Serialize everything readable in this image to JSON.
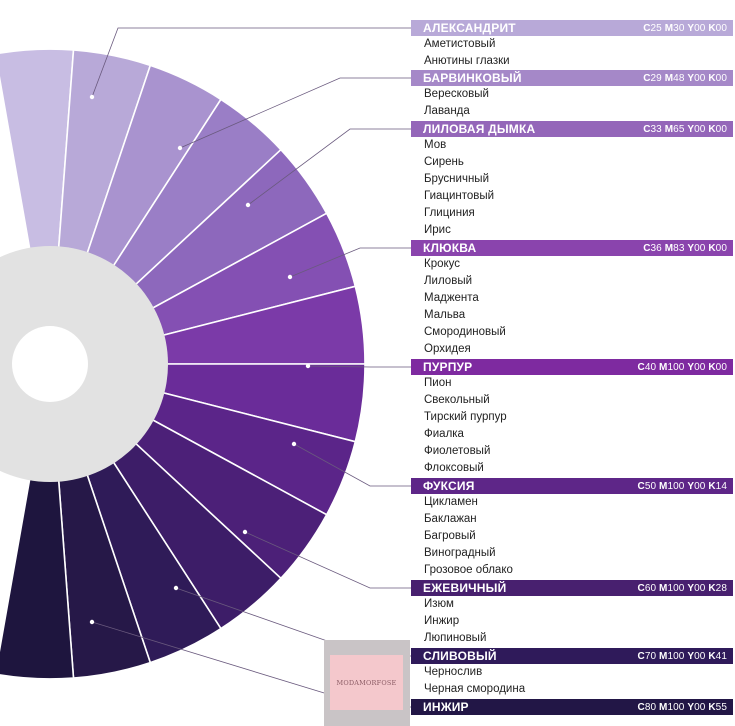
{
  "groups": [
    {
      "name": "АЛЕКСАНДРИТ",
      "cmyk": {
        "c": "25",
        "m": "30",
        "y": "00",
        "k": "00"
      },
      "color": "#b8a9d8",
      "items": [
        "Аметистовый",
        "Анютины глазки"
      ]
    },
    {
      "name": "БАРВИНКОВЫЙ",
      "cmyk": {
        "c": "29",
        "m": "48",
        "y": "00",
        "k": "00"
      },
      "color": "#a588c8",
      "items": [
        "Вересковый",
        "Лаванда"
      ]
    },
    {
      "name": "ЛИЛОВАЯ ДЫМКА",
      "cmyk": {
        "c": "33",
        "m": "65",
        "y": "00",
        "k": "00"
      },
      "color": "#9466b9",
      "items": [
        "Мов",
        "Сирень",
        "Брусничный",
        "Гиацинтовый",
        "Глициния",
        "Ирис"
      ]
    },
    {
      "name": "КЛЮКВА",
      "cmyk": {
        "c": "36",
        "m": "83",
        "y": "00",
        "k": "00"
      },
      "color": "#8a44ad",
      "items": [
        "Крокус",
        "Лиловый",
        "Маджента",
        "Мальва",
        "Смородиновый",
        "Орхидея"
      ]
    },
    {
      "name": "ПУРПУР",
      "cmyk": {
        "c": "40",
        "m": "100",
        "y": "00",
        "k": "00"
      },
      "color": "#7e2aa0",
      "items": [
        "Пион",
        "Свекольный",
        "Тирский пурпур",
        "Фиалка",
        "Фиолетовый",
        "Флоксовый"
      ]
    },
    {
      "name": "ФУКСИЯ",
      "cmyk": {
        "c": "50",
        "m": "100",
        "y": "00",
        "k": "14"
      },
      "color": "#5e2688",
      "items": [
        "Цикламен",
        "Баклажан",
        "Багровый",
        "Виноградный",
        "Грозовое облако"
      ]
    },
    {
      "name": "ЕЖЕВИЧНЫЙ",
      "cmyk": {
        "c": "60",
        "m": "100",
        "y": "00",
        "k": "28"
      },
      "color": "#48206f",
      "items": [
        "Изюм",
        "Инжир",
        "Люпиновый"
      ]
    },
    {
      "name": "СЛИВОВЫЙ",
      "cmyk": {
        "c": "70",
        "m": "100",
        "y": "00",
        "k": "41"
      },
      "color": "#2f1a5a",
      "items": [
        "Чернослив",
        "Черная смородина"
      ]
    },
    {
      "name": "ИНЖИР",
      "cmyk": {
        "c": "80",
        "m": "100",
        "y": "00",
        "k": "55"
      },
      "color": "#221646",
      "items": []
    }
  ],
  "wheel": {
    "segment_colors": [
      "#c8bde3",
      "#b8a9d8",
      "#a993cf",
      "#9a7ec6",
      "#8d68bc",
      "#8450b3",
      "#7b3aa8",
      "#6a2c99",
      "#5b2589",
      "#4c2078",
      "#3d1d68",
      "#2f1b58",
      "#261848",
      "#1e153e"
    ],
    "hub_color": "#e2e2e2",
    "hole_color": "#ffffff"
  },
  "watermark": {
    "text": "MODAMORFOSE"
  }
}
